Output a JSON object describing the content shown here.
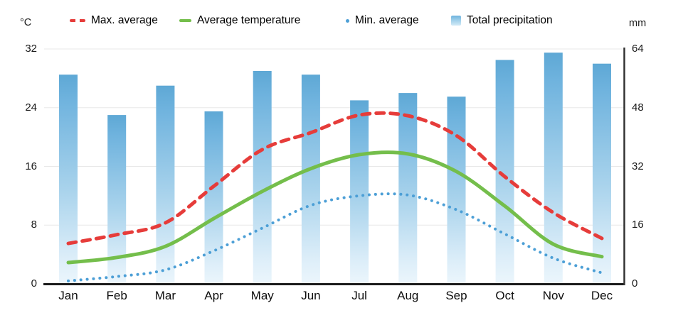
{
  "axes": {
    "left_unit": "°C",
    "right_unit": "mm"
  },
  "chart_data": {
    "type": "bar+line combo (climate chart)",
    "categories": [
      "Jan",
      "Feb",
      "Mar",
      "Apr",
      "May",
      "Jun",
      "Jul",
      "Aug",
      "Sep",
      "Oct",
      "Nov",
      "Dec"
    ],
    "series": [
      {
        "name": "Max. average",
        "type": "line",
        "style": "dashed",
        "color": "#e63c3a",
        "axis": "temperature_c",
        "values": [
          5.5,
          6.7,
          8.3,
          13.3,
          18.3,
          20.6,
          23.0,
          22.9,
          20.2,
          14.6,
          9.7,
          6.2
        ]
      },
      {
        "name": "Average temperature",
        "type": "line",
        "style": "solid",
        "color": "#74be4b",
        "axis": "temperature_c",
        "values": [
          2.9,
          3.6,
          5.1,
          8.9,
          12.6,
          15.7,
          17.6,
          17.7,
          15.3,
          10.6,
          5.4,
          3.7
        ]
      },
      {
        "name": "Min. average",
        "type": "line",
        "style": "dotted",
        "color": "#4c9fd6",
        "axis": "temperature_c",
        "values": [
          0.4,
          1.0,
          1.9,
          4.5,
          7.6,
          10.7,
          12.0,
          12.1,
          10.1,
          6.8,
          3.5,
          1.5
        ]
      },
      {
        "name": "Total precipitation",
        "type": "bar",
        "color_top": "#5ea8d5",
        "color_bottom": "#ecf6fc",
        "axis": "precipitation_mm",
        "values": [
          57,
          46,
          54,
          47,
          58,
          57,
          50,
          52,
          51,
          61,
          63,
          60
        ]
      }
    ],
    "y_left": {
      "unit": "°C",
      "ticks": [
        0,
        8,
        16,
        24,
        32
      ],
      "range": [
        0,
        32
      ]
    },
    "y_right": {
      "unit": "mm",
      "ticks": [
        0,
        16,
        32,
        48,
        64
      ],
      "range": [
        0,
        64
      ]
    },
    "grid": true,
    "legend_position": "top"
  },
  "colors": {
    "grid": "#e8e8e8",
    "axis": "#1b1b1b",
    "text": "#111111"
  }
}
